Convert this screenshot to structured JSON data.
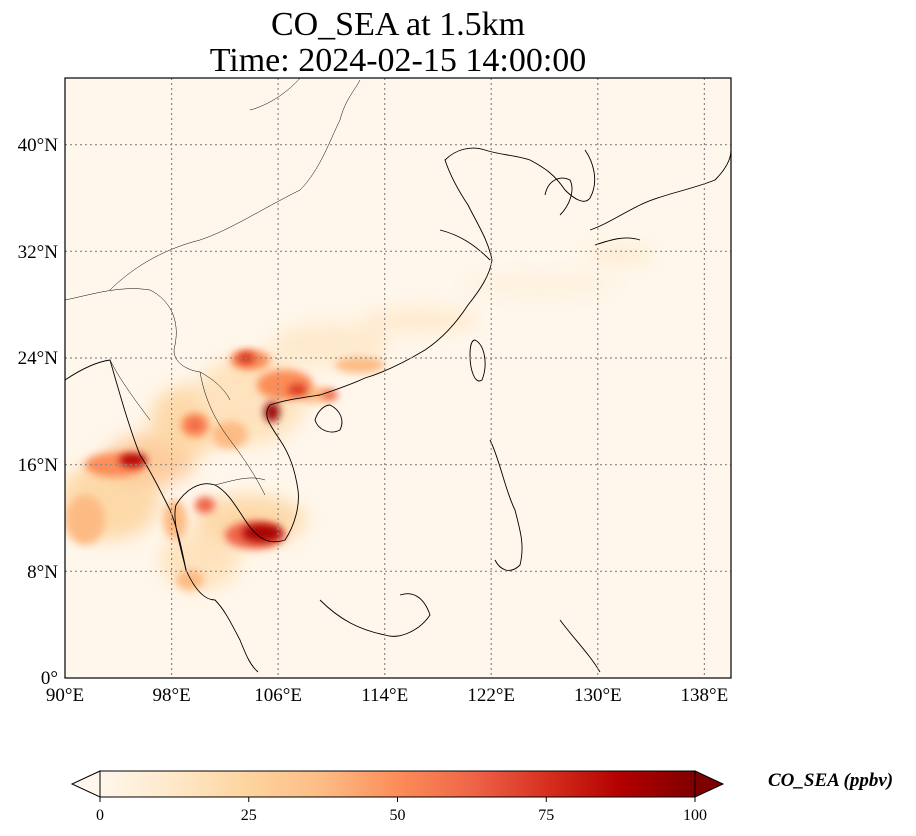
{
  "title": {
    "line1": "CO_SEA at 1.5km",
    "line2": "Time: 2024-02-15 14:00:00"
  },
  "axes": {
    "lat_ticks": [
      "40°N",
      "32°N",
      "24°N",
      "16°N",
      "8°N",
      "0°"
    ],
    "lon_ticks": [
      "90°E",
      "98°E",
      "106°E",
      "114°E",
      "122°E",
      "130°E",
      "138°E"
    ],
    "lon_range": [
      90,
      140
    ],
    "lat_range": [
      0,
      45
    ],
    "gridlines": true
  },
  "colorbar": {
    "label": "CO_SEA (ppbv)",
    "ticks": [
      "0",
      "25",
      "50",
      "75",
      "100"
    ],
    "range": [
      0,
      100
    ],
    "extend": "both",
    "colormap": "OrRd",
    "colors": [
      "#fff7ec",
      "#fee8c8",
      "#fdd49e",
      "#fdbb84",
      "#fc8d59",
      "#ef6548",
      "#d7301f",
      "#b30000",
      "#7f0000"
    ]
  }
}
